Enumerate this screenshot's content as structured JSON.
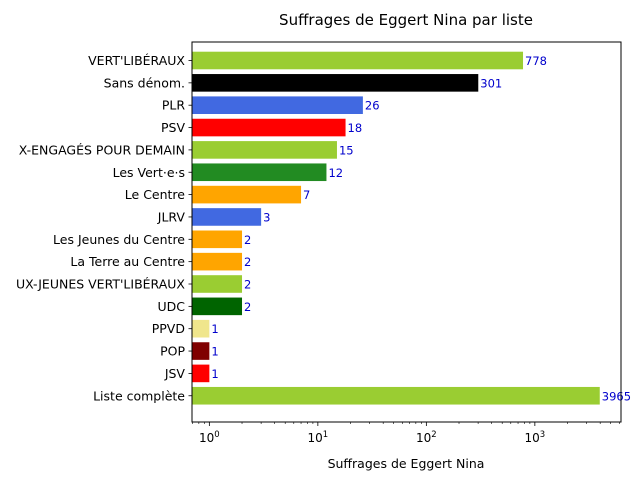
{
  "chart_data": {
    "type": "bar",
    "orientation": "horizontal",
    "title": "Suffrages de Eggert Nina par liste",
    "xlabel": "Suffrages de Eggert Nina",
    "xscale": "log",
    "xticks": [
      {
        "value": 1,
        "base": "10",
        "exp": "0"
      },
      {
        "value": 10,
        "base": "10",
        "exp": "1"
      },
      {
        "value": 100,
        "base": "10",
        "exp": "2"
      },
      {
        "value": 1000,
        "base": "10",
        "exp": "3"
      }
    ],
    "categories": [
      "VERT'LIBÉRAUX",
      "Sans dénom.",
      "PLR",
      "PSV",
      "X-ENGAGÉS POUR DEMAIN",
      "Les Vert·e·s",
      "Le Centre",
      "JLRV",
      "Les Jeunes du Centre",
      "La Terre au Centre",
      "UX-JEUNES VERT'LIBÉRAUX",
      "UDC",
      "PPVD",
      "POP",
      "JSV",
      "Liste complète"
    ],
    "values": [
      778,
      301,
      26,
      18,
      15,
      12,
      7,
      3,
      2,
      2,
      2,
      2,
      1,
      1,
      1,
      3965
    ],
    "value_labels": [
      "778",
      "301",
      "26",
      "18",
      "15",
      "12",
      "7",
      "3",
      "2",
      "2",
      "2",
      "2",
      "1",
      "1",
      "1",
      "3965"
    ],
    "colors": [
      "#9acd32",
      "#000000",
      "#4169e1",
      "#ff0000",
      "#9acd32",
      "#228b22",
      "#ffa500",
      "#4169e1",
      "#ffa500",
      "#ffa500",
      "#9acd32",
      "#006400",
      "#f0e68c",
      "#800000",
      "#ff0000",
      "#9acd32"
    ]
  }
}
